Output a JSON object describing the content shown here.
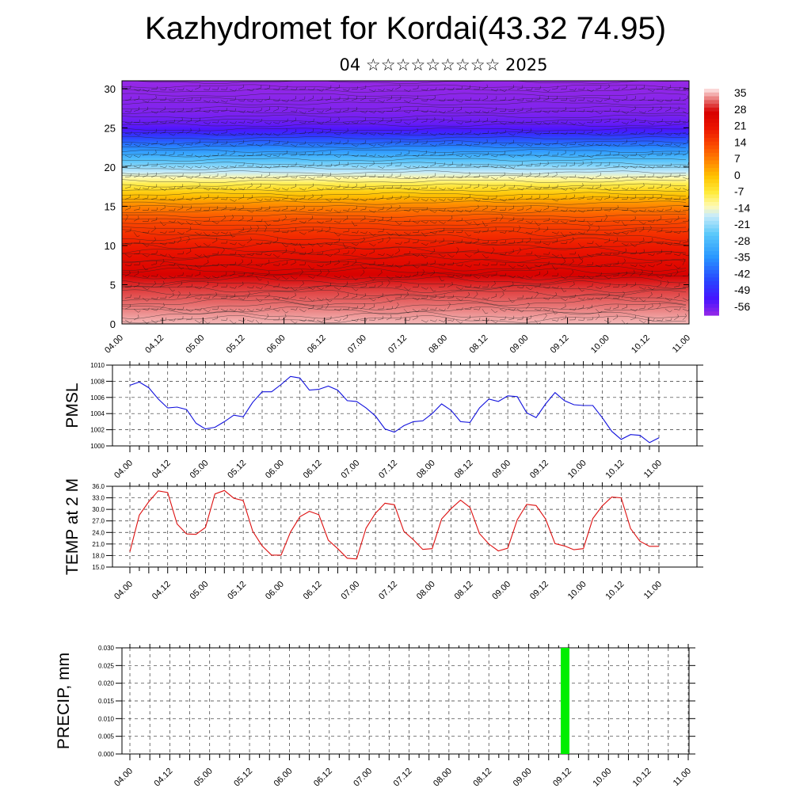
{
  "title": "Kazhydromet for Kordai(43.32 74.95)",
  "subtitle": "04 ☆☆☆☆☆☆☆☆☆ 2025",
  "colors": {
    "pmsl_line": "#1010dd",
    "temp_line": "#dd1010",
    "precip_bar": "#00ee00"
  },
  "chart_data": [
    {
      "type": "heatmap",
      "description_words": "temperature cross-section with wind barbs",
      "x_tick_labels": [
        "04.00",
        "04.12",
        "05.00",
        "05.12",
        "06.00",
        "06.12",
        "07.00",
        "07.12",
        "08.00",
        "08.12",
        "09.00",
        "09.12",
        "10.00",
        "10.12",
        "11.00"
      ],
      "y_tick_labels": [
        "0",
        "5",
        "10",
        "15",
        "20",
        "25",
        "30"
      ],
      "ylim": [
        0,
        31
      ],
      "colorbar": {
        "labels": [
          "35",
          "28",
          "21",
          "14",
          "7",
          "0",
          "-7",
          "-14",
          "-21",
          "-28",
          "-35",
          "-42",
          "-49",
          "-56"
        ],
        "range": [
          -60,
          38
        ]
      },
      "profile": {
        "heights": [
          0,
          5,
          9,
          13,
          15,
          17,
          19,
          21,
          23,
          25,
          27,
          31
        ],
        "temps": [
          36,
          30,
          22,
          14,
          7,
          -3,
          -15,
          -27,
          -40,
          -55,
          -58,
          -60
        ]
      }
    },
    {
      "type": "line",
      "ylabel": "PMSL",
      "x_tick_labels": [
        "04.00",
        "04.12",
        "05.00",
        "05.12",
        "06.00",
        "06.12",
        "07.00",
        "07.12",
        "08.00",
        "08.12",
        "09.00",
        "09.12",
        "10.00",
        "10.12",
        "11.00"
      ],
      "y_tick_labels": [
        "1010",
        "1008",
        "1006",
        "1004",
        "1002",
        "1000"
      ],
      "ylim": [
        1000,
        1010
      ],
      "values": [
        1007.5,
        1007.9,
        1007.2,
        1005.8,
        1004.7,
        1004.8,
        1004.5,
        1002.8,
        1002.1,
        1002.3,
        1003.0,
        1003.8,
        1003.6,
        1005.4,
        1006.7,
        1006.7,
        1007.6,
        1008.6,
        1008.4,
        1006.9,
        1007.0,
        1007.4,
        1006.9,
        1005.6,
        1005.5,
        1004.7,
        1003.7,
        1002.1,
        1001.7,
        1002.5,
        1003.0,
        1003.1,
        1004.0,
        1005.2,
        1004.4,
        1003.0,
        1002.9,
        1004.7,
        1005.8,
        1005.5,
        1006.2,
        1006.1,
        1004.1,
        1003.5,
        1005.2,
        1006.6,
        1005.6,
        1005.1,
        1005.0,
        1005.0,
        1003.5,
        1001.8,
        1000.8,
        1001.4,
        1001.3,
        1000.4,
        1001.0
      ]
    },
    {
      "type": "line",
      "ylabel": "TEMP at 2 M",
      "x_tick_labels": [
        "04.00",
        "04.12",
        "05.00",
        "05.12",
        "06.00",
        "06.12",
        "07.00",
        "07.12",
        "08.00",
        "08.12",
        "09.00",
        "09.12",
        "10.00",
        "10.12",
        "11.00"
      ],
      "y_tick_labels": [
        "36.0",
        "33.0",
        "30.0",
        "27.0",
        "24.0",
        "21.0",
        "18.0",
        "15.0"
      ],
      "ylim": [
        15,
        36
      ],
      "values": [
        19.0,
        28.5,
        32.0,
        34.8,
        34.4,
        26.2,
        23.6,
        23.5,
        25.3,
        34.0,
        34.9,
        32.9,
        32.3,
        24.3,
        20.5,
        18.1,
        18.1,
        24.1,
        28.1,
        29.5,
        28.6,
        22.0,
        19.8,
        17.3,
        17.1,
        25.1,
        29.0,
        31.6,
        31.2,
        24.3,
        22.1,
        19.6,
        19.8,
        27.5,
        30.2,
        32.4,
        30.5,
        23.7,
        21.0,
        19.2,
        19.9,
        27.3,
        31.3,
        31.0,
        27.5,
        21.1,
        20.5,
        19.5,
        19.8,
        27.6,
        30.9,
        33.2,
        33.0,
        25.0,
        21.7,
        20.4,
        20.4
      ]
    },
    {
      "type": "bar",
      "ylabel": "PRECIP, mm",
      "x_tick_labels": [
        "04.00",
        "04.12",
        "05.00",
        "05.12",
        "06.00",
        "06.12",
        "07.00",
        "07.12",
        "08.00",
        "08.12",
        "09.00",
        "09.12",
        "10.00",
        "10.12",
        "11.00"
      ],
      "y_tick_labels": [
        "0.030",
        "0.025",
        "0.020",
        "0.015",
        "0.010",
        "0.005",
        "0.000"
      ],
      "ylim": [
        0,
        0.03
      ],
      "bars": [
        {
          "x_step": 44.8,
          "value": 0.03
        }
      ]
    }
  ]
}
